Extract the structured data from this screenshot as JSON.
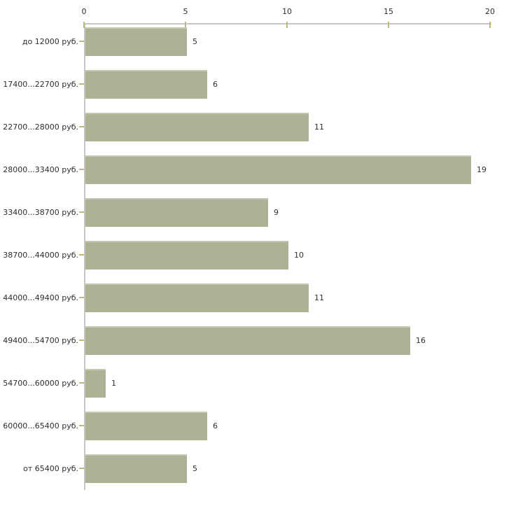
{
  "chart_data": {
    "type": "bar",
    "orientation": "horizontal",
    "title": "",
    "xlabel": "",
    "ylabel": "",
    "categories": [
      "до 12000 руб.",
      "17400...22700 руб.",
      "22700...28000 руб.",
      "28000...33400 руб.",
      "33400...38700 руб.",
      "38700...44000 руб.",
      "44000...49400 руб.",
      "49400...54700 руб.",
      "54700...60000 руб.",
      "60000...65400 руб.",
      "от 65400 руб."
    ],
    "values": [
      5,
      6,
      11,
      19,
      9,
      10,
      11,
      16,
      1,
      6,
      5
    ],
    "xlim": [
      0,
      20
    ],
    "x_ticks": [
      0,
      5,
      10,
      15,
      20
    ],
    "grid": false,
    "legend": false,
    "data_labels": true,
    "colors": {
      "bar": "#acb294",
      "bar_top_highlight": "#c5c8b2",
      "axis_line": "#c6c6c2",
      "tick": "#bdb97a",
      "text": "#2e2e2e",
      "background": "#ffffff"
    }
  }
}
